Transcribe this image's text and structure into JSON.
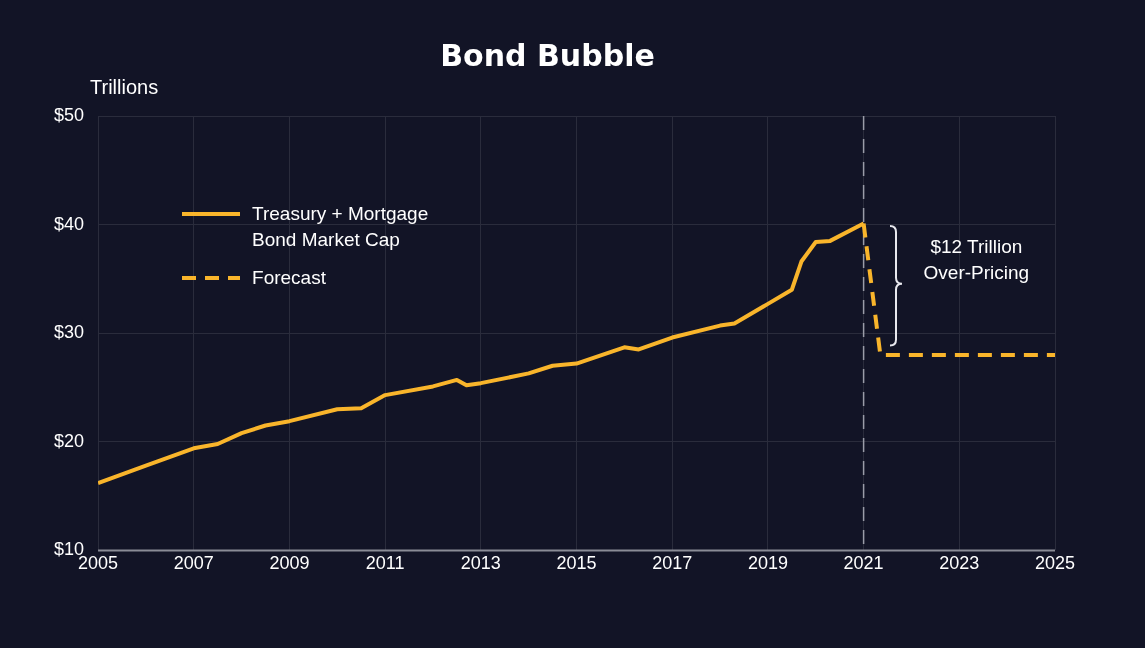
{
  "chart_data": {
    "type": "line",
    "title": "Bond Bubble",
    "ylabel": "Trillions",
    "xlim": [
      2005,
      2025
    ],
    "xticks": [
      2005,
      2007,
      2009,
      2011,
      2013,
      2015,
      2017,
      2019,
      2021,
      2023,
      2025
    ],
    "ylim": [
      10,
      50
    ],
    "yticks": [
      {
        "value": 10,
        "label": "$10"
      },
      {
        "value": 20,
        "label": "$20"
      },
      {
        "value": 30,
        "label": "$30"
      },
      {
        "value": 40,
        "label": "$40"
      },
      {
        "value": 50,
        "label": "$50"
      }
    ],
    "grid": true,
    "legend": "top left",
    "marker": "none",
    "series": [
      {
        "name": "Treasury + Mortgage Bond Market Cap",
        "color": "#f9b52b",
        "line_style": "solid",
        "x": [
          2005,
          2006,
          2007,
          2007.5,
          2008,
          2008.5,
          2009,
          2010,
          2010.5,
          2011,
          2012,
          2012.5,
          2012.7,
          2013,
          2014,
          2014.5,
          2015,
          2016,
          2016.3,
          2017,
          2018,
          2018.3,
          2019,
          2019.5,
          2019.7,
          2020,
          2020.3,
          2021
        ],
        "values": [
          16.2,
          17.8,
          19.4,
          19.8,
          20.8,
          21.5,
          21.9,
          23.0,
          23.1,
          24.3,
          25.1,
          25.7,
          25.2,
          25.4,
          26.3,
          27.0,
          27.2,
          28.7,
          28.5,
          29.6,
          30.7,
          30.9,
          32.7,
          34.0,
          36.6,
          38.4,
          38.5,
          40.1
        ]
      },
      {
        "name": "Forecast",
        "color": "#f9b52b",
        "line_style": "dashed",
        "x": [
          2021,
          2021.35,
          2025
        ],
        "values": [
          40.1,
          28.0,
          28.0
        ]
      }
    ],
    "ref_lines": [
      {
        "axis": "x",
        "value": 2021,
        "color": "#9a9ca8",
        "line_style": "dashed"
      }
    ],
    "annotations": [
      "$12 Trillion Over-Pricing"
    ]
  }
}
